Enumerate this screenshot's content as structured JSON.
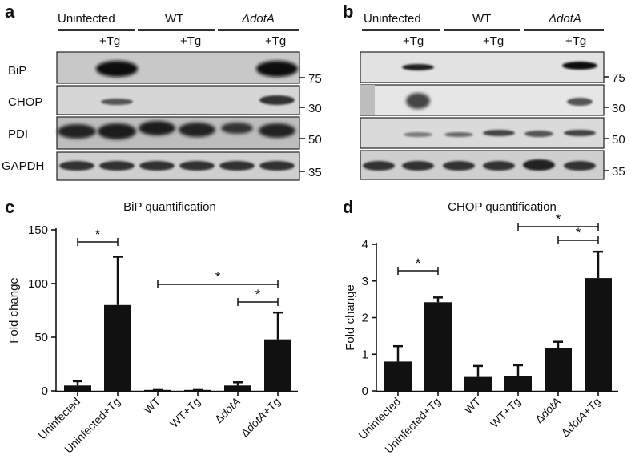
{
  "panels": {
    "a": "a",
    "b": "b",
    "c": "c",
    "d": "d"
  },
  "blot": {
    "groups": [
      "Uninfected",
      "WT",
      "ΔdotA"
    ],
    "treatment": "+Tg",
    "rows": [
      "BiP",
      "CHOP",
      "PDI",
      "GAPDH"
    ],
    "mw_markers": [
      "75",
      "30",
      "50",
      "35"
    ]
  },
  "chart_data": [
    {
      "type": "bar",
      "title": "BiP quantification",
      "xlabel": "",
      "ylabel": "Fold change",
      "categories": [
        "Uninfected",
        "Uninfected+Tg",
        "WT",
        "WT+Tg",
        "ΔdotA",
        "ΔdotA+Tg"
      ],
      "values": [
        5,
        80,
        0.5,
        0.5,
        5,
        48
      ],
      "errors": [
        4,
        45,
        0.3,
        0.3,
        3,
        25
      ],
      "ylim": [
        0,
        150
      ],
      "yticks": [
        "0",
        "50",
        "100",
        "150"
      ],
      "significance": [
        {
          "from": "Uninfected",
          "to": "Uninfected+Tg",
          "label": "*"
        },
        {
          "from": "ΔdotA",
          "to": "ΔdotA+Tg",
          "label": "*"
        },
        {
          "from": "WT",
          "to": "ΔdotA+Tg",
          "label": "*"
        }
      ],
      "bar_color": "#111111"
    },
    {
      "type": "bar",
      "title": "CHOP quantification",
      "xlabel": "",
      "ylabel": "Fold change",
      "categories": [
        "Uninfected",
        "Uninfected+Tg",
        "WT",
        "WT+Tg",
        "ΔdotA",
        "ΔdotA+Tg"
      ],
      "values": [
        0.8,
        2.42,
        0.38,
        0.4,
        1.17,
        3.08
      ],
      "errors": [
        0.42,
        0.13,
        0.3,
        0.3,
        0.17,
        0.72
      ],
      "ylim": [
        0,
        4
      ],
      "yticks": [
        "0",
        "1",
        "2",
        "3",
        "4"
      ],
      "significance": [
        {
          "from": "Uninfected",
          "to": "Uninfected+Tg",
          "label": "*"
        },
        {
          "from": "ΔdotA",
          "to": "ΔdotA+Tg",
          "label": "*"
        },
        {
          "from": "WT+Tg",
          "to": "ΔdotA+Tg",
          "label": "*"
        }
      ],
      "bar_color": "#111111"
    }
  ]
}
